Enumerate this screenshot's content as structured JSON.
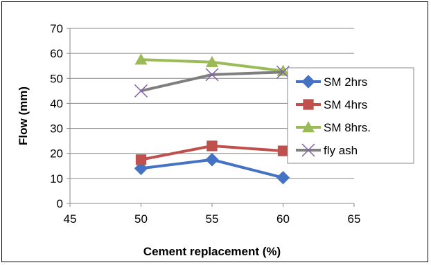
{
  "chart_data": {
    "type": "scatter",
    "xlabel": "Cement replacement (%)",
    "ylabel": "Flow (mm)",
    "xlim": [
      45,
      65
    ],
    "ylim": [
      0,
      70
    ],
    "x_ticks": [
      "45",
      "50",
      "55",
      "60",
      "65"
    ],
    "y_ticks": [
      "0",
      "10",
      "20",
      "30",
      "40",
      "50",
      "60",
      "70"
    ],
    "grid": "horizontal",
    "legend_position": "right",
    "series": [
      {
        "name": "SM 2hrs",
        "color": "#4472C4",
        "marker": "diamond",
        "x": [
          50,
          55,
          60
        ],
        "y": [
          14,
          17.5,
          10.3
        ]
      },
      {
        "name": "SM 4hrs",
        "color": "#C0504D",
        "marker": "square",
        "x": [
          50,
          55,
          60
        ],
        "y": [
          17.5,
          23,
          21
        ]
      },
      {
        "name": "SM 8hrs.",
        "color": "#9BBB59",
        "marker": "triangle",
        "x": [
          50,
          55,
          60
        ],
        "y": [
          57.5,
          56.5,
          53
        ]
      },
      {
        "name": "fly ash",
        "color": "#7F7F7F",
        "marker": "x",
        "x": [
          50,
          55,
          60
        ],
        "y": [
          45,
          51.5,
          52.5
        ]
      }
    ]
  }
}
